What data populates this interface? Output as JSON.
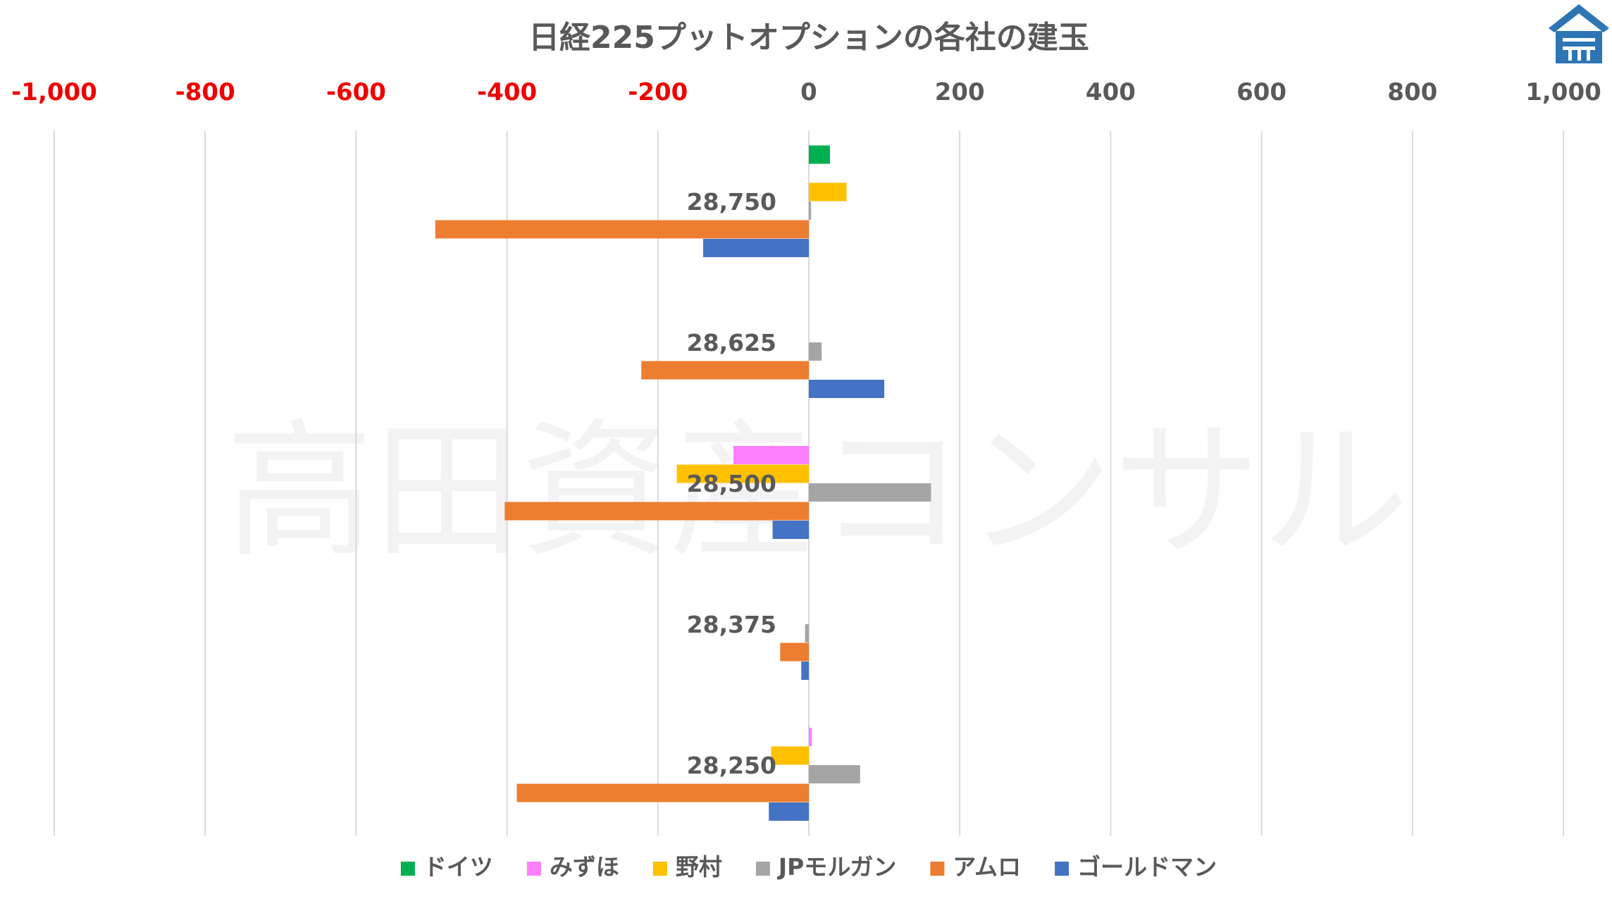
{
  "chart_data": {
    "type": "bar",
    "orientation": "horizontal",
    "title": "日経225プットオプションの各社の建玉",
    "watermark": "高田資産コンサル",
    "xlim": [
      -1000,
      1000
    ],
    "x_ticks": [
      "-1,000",
      "-800",
      "-600",
      "-400",
      "-200",
      "0",
      "200",
      "400",
      "600",
      "800",
      "1,000"
    ],
    "x_tick_values": [
      -1000,
      -800,
      -600,
      -400,
      -200,
      0,
      200,
      400,
      600,
      800,
      1000
    ],
    "negative_tick_color": "#ee0000",
    "positive_tick_color": "#595959",
    "grid": true,
    "legend_position": "bottom",
    "categories": [
      "28,750",
      "28,625",
      "28,500",
      "28,375",
      "28,250"
    ],
    "series": [
      {
        "name": "ドイツ",
        "color": "#00b050",
        "values": [
          28,
          0,
          0,
          0,
          0
        ]
      },
      {
        "name": "みずほ",
        "color": "#ff80ff",
        "values": [
          0,
          0,
          -100,
          0,
          4
        ]
      },
      {
        "name": "野村",
        "color": "#ffc000",
        "values": [
          50,
          0,
          -175,
          0,
          -50
        ]
      },
      {
        "name": "JPモルガン",
        "color": "#a5a5a5",
        "values": [
          3,
          17,
          162,
          -5,
          68
        ]
      },
      {
        "name": "アムロ",
        "color": "#ed7d31",
        "values": [
          -495,
          -222,
          -403,
          -38,
          -387
        ]
      },
      {
        "name": "ゴールドマン",
        "color": "#4472c4",
        "values": [
          -140,
          100,
          -48,
          -10,
          -53
        ]
      }
    ]
  },
  "logo": {
    "name": "takata-logo-icon",
    "color": "#2e75b6"
  }
}
